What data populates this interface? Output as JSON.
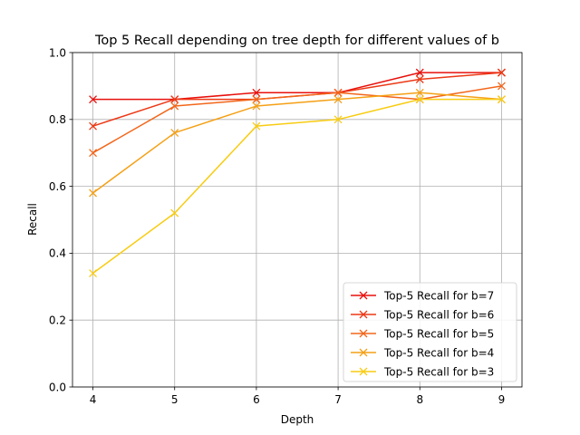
{
  "chart_data": {
    "type": "line",
    "title": "Top 5 Recall depending on tree depth for different values of b",
    "xlabel": "Depth",
    "ylabel": "Recall",
    "x": [
      4,
      5,
      6,
      7,
      8,
      9
    ],
    "xticks": [
      "4",
      "5",
      "6",
      "7",
      "8",
      "9"
    ],
    "yticks": [
      "0.0",
      "0.2",
      "0.4",
      "0.6",
      "0.8",
      "1.0"
    ],
    "xlim": [
      3.75,
      9.25
    ],
    "ylim": [
      0,
      1
    ],
    "grid": true,
    "legend_position": "lower-right",
    "marker": "x",
    "series": [
      {
        "name": "Top-5 Recall for b=7",
        "color": "#e8100c",
        "values": [
          0.86,
          0.86,
          0.88,
          0.88,
          0.94,
          0.94
        ]
      },
      {
        "name": "Top-5 Recall for b=6",
        "color": "#ec3814",
        "values": [
          0.78,
          0.86,
          0.86,
          0.88,
          0.92,
          0.94
        ]
      },
      {
        "name": "Top-5 Recall for b=5",
        "color": "#f2661a",
        "values": [
          0.7,
          0.84,
          0.86,
          0.88,
          0.86,
          0.9
        ]
      },
      {
        "name": "Top-5 Recall for b=4",
        "color": "#f4a015",
        "values": [
          0.58,
          0.76,
          0.84,
          0.86,
          0.88,
          0.86
        ]
      },
      {
        "name": "Top-5 Recall for b=3",
        "color": "#f8cc12",
        "values": [
          0.34,
          0.52,
          0.78,
          0.8,
          0.86,
          0.86
        ]
      }
    ]
  }
}
